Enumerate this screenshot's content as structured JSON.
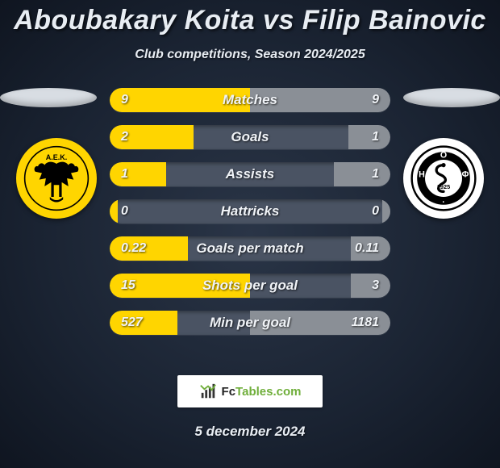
{
  "title": "Aboubakary Koita vs Filip Bainovic",
  "subtitle": "Club competitions, Season 2024/2025",
  "date": "5 december 2024",
  "brand": {
    "prefix": "Fc",
    "suffix": "Tables.com"
  },
  "colors": {
    "left_fill": "#ffd500",
    "right_fill": "#8a8f96",
    "bar_track": "#4a5363",
    "podium": "#d8dde3"
  },
  "left_crest": {
    "label": "Α.Ε.Κ.",
    "bg": "#ffd500"
  },
  "right_crest": {
    "label": "Ο.Φ.Η.",
    "year": "1925",
    "bg": "#ffffff"
  },
  "rows": [
    {
      "label": "Matches",
      "left": "9",
      "right": "9",
      "lp": 50,
      "rp": 50
    },
    {
      "label": "Goals",
      "left": "2",
      "right": "1",
      "lp": 30,
      "rp": 15
    },
    {
      "label": "Assists",
      "left": "1",
      "right": "1",
      "lp": 20,
      "rp": 20
    },
    {
      "label": "Hattricks",
      "left": "0",
      "right": "0",
      "lp": 3,
      "rp": 3
    },
    {
      "label": "Goals per match",
      "left": "0.22",
      "right": "0.11",
      "lp": 28,
      "rp": 14
    },
    {
      "label": "Shots per goal",
      "left": "15",
      "right": "3",
      "lp": 50,
      "rp": 14
    },
    {
      "label": "Min per goal",
      "left": "527",
      "right": "1181",
      "lp": 24,
      "rp": 50
    }
  ]
}
